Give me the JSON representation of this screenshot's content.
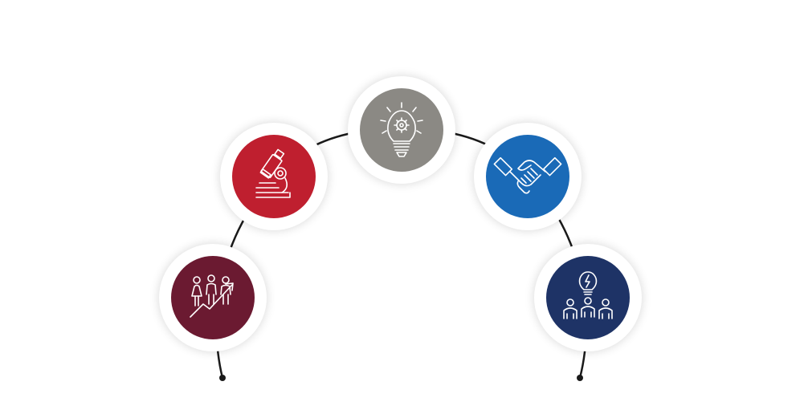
{
  "diagram": {
    "connector_color": "#1a1a1a",
    "nodes": [
      {
        "key": "growth",
        "icon": "team-growth-chart-icon",
        "color": "#6b1a31"
      },
      {
        "key": "research",
        "icon": "microscope-icon",
        "color": "#bf1f2f"
      },
      {
        "key": "innovation",
        "icon": "lightbulb-gear-icon",
        "color": "#8b8984"
      },
      {
        "key": "partnership",
        "icon": "handshake-icon",
        "color": "#1a6ab7"
      },
      {
        "key": "teamwork",
        "icon": "team-idea-icon",
        "color": "#1e3366"
      }
    ]
  }
}
